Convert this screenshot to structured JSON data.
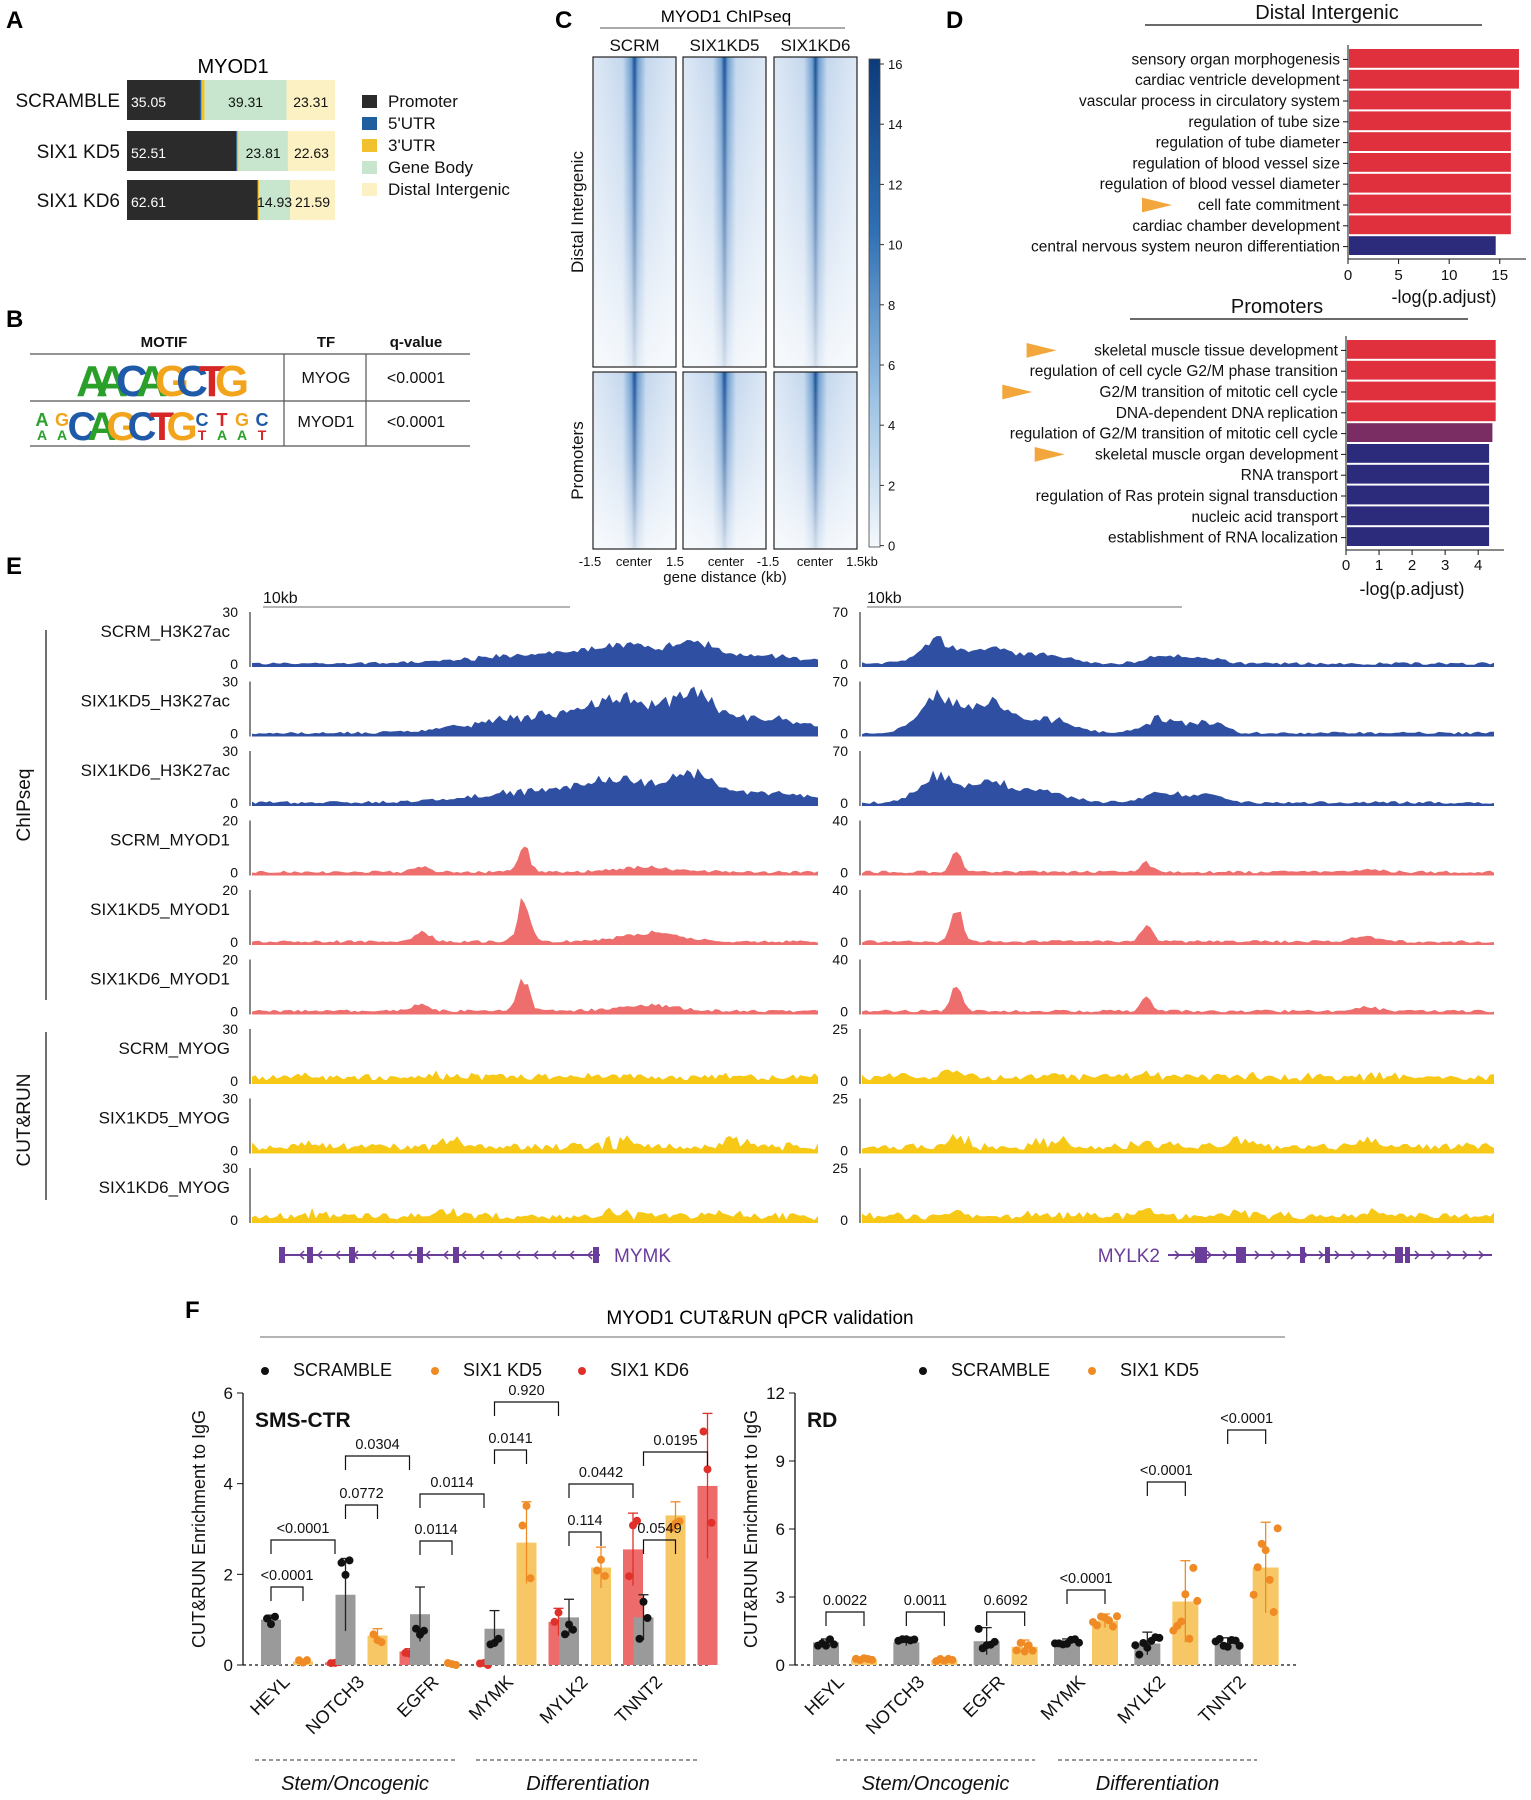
{
  "colors": {
    "promoter": "#2b2b2b",
    "utr5": "#1f5f9e",
    "utr3": "#f2c12e",
    "gene_body": "#c7e6cd",
    "distal": "#fbf1c2",
    "h3k27ac": "#2f4fa3",
    "myod1": "#ee6e6e",
    "myog": "#f7c916",
    "gene": "#6a3d9a",
    "go_red": "#e0303e",
    "go_navy": "#2c2a7a",
    "go_mid": "#7a2d63",
    "arrow": "#f3a63b",
    "bar_scr": "#9a9a9a",
    "bar_kd5": "#f7c765",
    "bar_kd6": "#ee6b6b",
    "dot_scr": "#111111",
    "dot_kd5": "#f08a24",
    "dot_kd6": "#e0302a",
    "heat_dark": "#0d3b7a",
    "heat_light": "#f4f8fc"
  },
  "panel_a": {
    "letter": "A",
    "title": "MYOD1",
    "legend": [
      "Promoter",
      "5'UTR",
      "3'UTR",
      "Gene Body",
      "Distal Intergenic"
    ],
    "rows": [
      {
        "label": "SCRAMBLE",
        "segments": [
          35.05,
          0.7,
          1.55,
          39.31,
          23.31
        ],
        "texts": [
          "35.05",
          "39.31",
          "23.31"
        ]
      },
      {
        "label": "SIX1 KD5",
        "segments": [
          52.51,
          0.5,
          0.55,
          23.81,
          22.63
        ],
        "texts": [
          "52.51",
          "23.81",
          "22.63"
        ]
      },
      {
        "label": "SIX1 KD6",
        "segments": [
          62.61,
          0.4,
          0.47,
          14.93,
          21.59
        ],
        "texts": [
          "62.61",
          "14.93",
          "21.59"
        ]
      }
    ]
  },
  "panel_b": {
    "letter": "B",
    "headers": [
      "MOTIF",
      "TF",
      "q-value"
    ],
    "rows": [
      {
        "motif": "AACAGCTG",
        "tf": "MYOG",
        "q": "<0.0001"
      },
      {
        "motif": "AGCAGCTGCTGC",
        "tf": "MYOD1",
        "q": "<0.0001"
      }
    ]
  },
  "panel_c": {
    "letter": "C",
    "title": "MYOD1 ChIPseq",
    "columns": [
      "SCRM",
      "SIX1KD5",
      "SIX1KD6"
    ],
    "rows": [
      "Distal Intergenic",
      "Promoters"
    ],
    "x_ticks": [
      "-1.5",
      "center",
      "1.5",
      "center",
      "-1.5",
      "center",
      "1.5kb"
    ],
    "xlabel": "gene distance (kb)",
    "colorbar_ticks": [
      "16",
      "14",
      "12",
      "10",
      "8",
      "6",
      "4",
      "2",
      "0"
    ]
  },
  "panel_d": {
    "letter": "D",
    "distal": {
      "title": "Distal Intergenic",
      "xlabel": "-log(p.adjust)",
      "xmax": 17,
      "ticks": [
        "0",
        "5",
        "10",
        "15"
      ],
      "terms": [
        {
          "term": "sensory organ morphogenesis",
          "value": 16.8,
          "color": "red",
          "arrow": false
        },
        {
          "term": "cardiac ventricle development",
          "value": 16.8,
          "color": "red",
          "arrow": false
        },
        {
          "term": "vascular process in circulatory system",
          "value": 16.0,
          "color": "red",
          "arrow": false
        },
        {
          "term": "regulation of tube size",
          "value": 16.0,
          "color": "red",
          "arrow": false
        },
        {
          "term": "regulation of tube diameter",
          "value": 16.0,
          "color": "red",
          "arrow": false
        },
        {
          "term": "regulation of blood vessel size",
          "value": 16.0,
          "color": "red",
          "arrow": false
        },
        {
          "term": "regulation of blood vessel diameter",
          "value": 16.0,
          "color": "red",
          "arrow": false
        },
        {
          "term": "cell fate commitment",
          "value": 16.0,
          "color": "red",
          "arrow": true
        },
        {
          "term": "cardiac chamber development",
          "value": 16.0,
          "color": "red",
          "arrow": false
        },
        {
          "term": "central nervous system neuron differentiation",
          "value": 14.5,
          "color": "navy",
          "arrow": false
        }
      ]
    },
    "promoters": {
      "title": "Promoters",
      "xlabel": "-log(p.adjust)",
      "xmax": 4.6,
      "ticks": [
        "0",
        "1",
        "2",
        "3",
        "4"
      ],
      "terms": [
        {
          "term": "skeletal muscle tissue development",
          "value": 4.5,
          "color": "red",
          "arrow": true
        },
        {
          "term": "regulation of cell cycle G2/M phase transition",
          "value": 4.5,
          "color": "red",
          "arrow": false
        },
        {
          "term": "G2/M transition of mitotic cell cycle",
          "value": 4.5,
          "color": "red",
          "arrow": true
        },
        {
          "term": "DNA-dependent DNA replication",
          "value": 4.5,
          "color": "red",
          "arrow": false
        },
        {
          "term": "regulation of G2/M transition of mitotic cell cycle",
          "value": 4.4,
          "color": "mid",
          "arrow": false
        },
        {
          "term": "skeletal muscle organ development",
          "value": 4.3,
          "color": "navy",
          "arrow": true
        },
        {
          "term": "RNA transport",
          "value": 4.3,
          "color": "navy",
          "arrow": false
        },
        {
          "term": "regulation of Ras protein signal transduction",
          "value": 4.3,
          "color": "navy",
          "arrow": false
        },
        {
          "term": "nucleic acid transport",
          "value": 4.3,
          "color": "navy",
          "arrow": false
        },
        {
          "term": "establishment of RNA localization",
          "value": 4.3,
          "color": "navy",
          "arrow": false
        }
      ]
    }
  },
  "panel_e": {
    "letter": "E",
    "group_labels": [
      "ChIPseq",
      "CUT&RUN"
    ],
    "scale_label": "10kb",
    "tracks": [
      {
        "label": "SCRM_H3K27ac",
        "kind": "h3k27ac",
        "ymax_left": "30",
        "ymax_right": "70"
      },
      {
        "label": "SIX1KD5_H3K27ac",
        "kind": "h3k27ac",
        "ymax_left": "30",
        "ymax_right": "70"
      },
      {
        "label": "SIX1KD6_H3K27ac",
        "kind": "h3k27ac",
        "ymax_left": "30",
        "ymax_right": "70"
      },
      {
        "label": "SCRM_MYOD1",
        "kind": "myod1",
        "ymax_left": "20",
        "ymax_right": "40"
      },
      {
        "label": "SIX1KD5_MYOD1",
        "kind": "myod1",
        "ymax_left": "20",
        "ymax_right": "40"
      },
      {
        "label": "SIX1KD6_MYOD1",
        "kind": "myod1",
        "ymax_left": "20",
        "ymax_right": "40"
      },
      {
        "label": "SCRM_MYOG",
        "kind": "myog",
        "ymax_left": "30",
        "ymax_right": "25"
      },
      {
        "label": "SIX1KD5_MYOG",
        "kind": "myog",
        "ymax_left": "30",
        "ymax_right": "25"
      },
      {
        "label": "SIX1KD6_MYOG",
        "kind": "myog",
        "ymax_left": "30",
        "ymax_right": "25"
      }
    ],
    "ymin": "0",
    "genes": [
      "MYMK",
      "MYLK2"
    ]
  },
  "chart_data": [
    {
      "type": "bar",
      "panel": "F-left",
      "title": "SMS-CTR",
      "ylabel": "CUT&RUN Enrichment to IgG",
      "ylim": [
        0,
        6
      ],
      "yticks": [
        "0",
        "2",
        "4",
        "6"
      ],
      "categories": [
        "HEYL",
        "NOTCH3",
        "EGFR",
        "MYMK",
        "MYLK2",
        "TNNT2"
      ],
      "series": [
        {
          "name": "SCRAMBLE",
          "values": [
            1.0,
            1.55,
            1.12,
            0.8,
            1.05,
            1.05
          ],
          "errors": [
            0.1,
            0.8,
            0.6,
            0.4,
            0.4,
            0.5
          ]
        },
        {
          "name": "SIX1 KD5",
          "values": [
            0.08,
            0.65,
            0.0,
            2.7,
            2.15,
            3.3
          ],
          "errors": [
            0.03,
            0.15,
            0.0,
            0.9,
            0.45,
            0.3
          ]
        },
        {
          "name": "SIX1 KD6",
          "values": [
            0.06,
            0.3,
            0.0,
            0.95,
            2.55,
            3.95
          ],
          "errors": [
            0.02,
            0.06,
            0.0,
            0.3,
            0.8,
            1.6
          ]
        }
      ],
      "p_values": [
        "<0.0001",
        "<0.0001",
        "0.0772",
        "0.0304",
        "0.0114",
        "0.0114",
        "0.0141",
        "0.920",
        "0.114",
        "0.0442",
        "0.0549",
        "0.0195"
      ]
    },
    {
      "type": "bar",
      "panel": "F-right",
      "title": "RD",
      "ylabel": "CUT&RUN Enrichment to IgG",
      "ylim": [
        0,
        12
      ],
      "yticks": [
        "0",
        "3",
        "6",
        "9",
        "12"
      ],
      "categories": [
        "HEYL",
        "NOTCH3",
        "EGFR",
        "MYMK",
        "MYLK2",
        "TNNT2"
      ],
      "series": [
        {
          "name": "SCRAMBLE",
          "values": [
            1.0,
            1.0,
            1.05,
            1.0,
            0.95,
            1.0
          ],
          "errors": [
            0.15,
            0.15,
            0.6,
            0.15,
            0.5,
            0.2
          ]
        },
        {
          "name": "SIX1 KD5",
          "values": [
            0.25,
            0.22,
            0.8,
            1.95,
            2.8,
            4.3
          ],
          "errors": [
            0.05,
            0.05,
            0.3,
            0.3,
            1.8,
            2.0
          ]
        }
      ],
      "p_values": [
        "0.0022",
        "0.0011",
        "0.6092",
        "<0.0001",
        "<0.0001",
        "<0.0001"
      ]
    }
  ],
  "panel_f": {
    "letter": "F",
    "title": "MYOD1 CUT&RUN qPCR validation",
    "legend_left": [
      "SCRAMBLE",
      "SIX1 KD5",
      "SIX1 KD6"
    ],
    "legend_right": [
      "SCRAMBLE",
      "SIX1 KD5"
    ],
    "groups": [
      "Stem/Oncogenic",
      "Differentiation"
    ]
  }
}
